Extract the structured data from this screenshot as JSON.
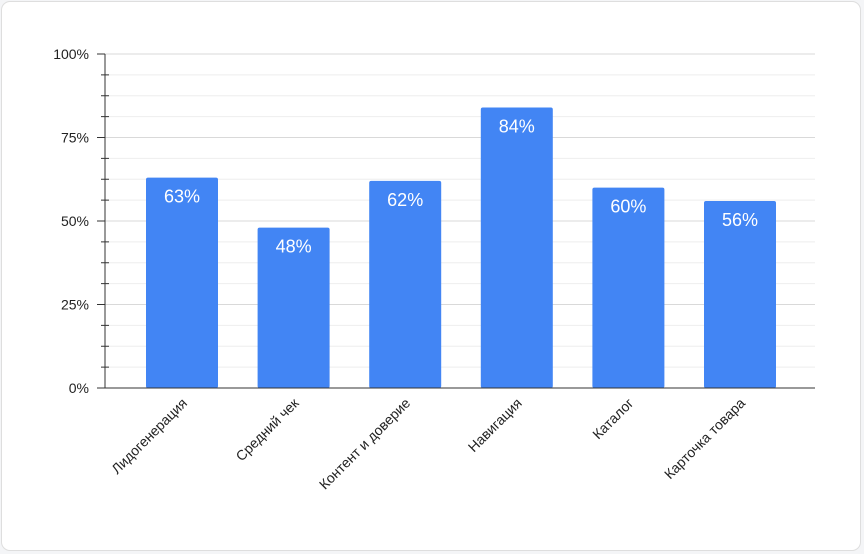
{
  "chart_data": {
    "type": "bar",
    "title": "",
    "xlabel": "",
    "ylabel": "",
    "categories": [
      "Лидогенерация",
      "Средний чек",
      "Контент и доверие",
      "Навигация",
      "Каталог",
      "Карточка товара"
    ],
    "values": [
      63,
      48,
      62,
      84,
      60,
      56
    ],
    "data_labels": [
      "63%",
      "48%",
      "62%",
      "84%",
      "60%",
      "56%"
    ],
    "ylim": [
      0,
      100
    ],
    "yticks": [
      0,
      25,
      50,
      75,
      100
    ],
    "ytick_labels": [
      "0%",
      "25%",
      "50%",
      "75%",
      "100%"
    ],
    "minor_ticks_per_major": 3,
    "grid": true,
    "legend": "none",
    "colors": {
      "bar": "#4285f4",
      "grid": "#d9d9d9",
      "axis": "#333333",
      "text": "#222222",
      "data_label": "#ffffff"
    }
  }
}
